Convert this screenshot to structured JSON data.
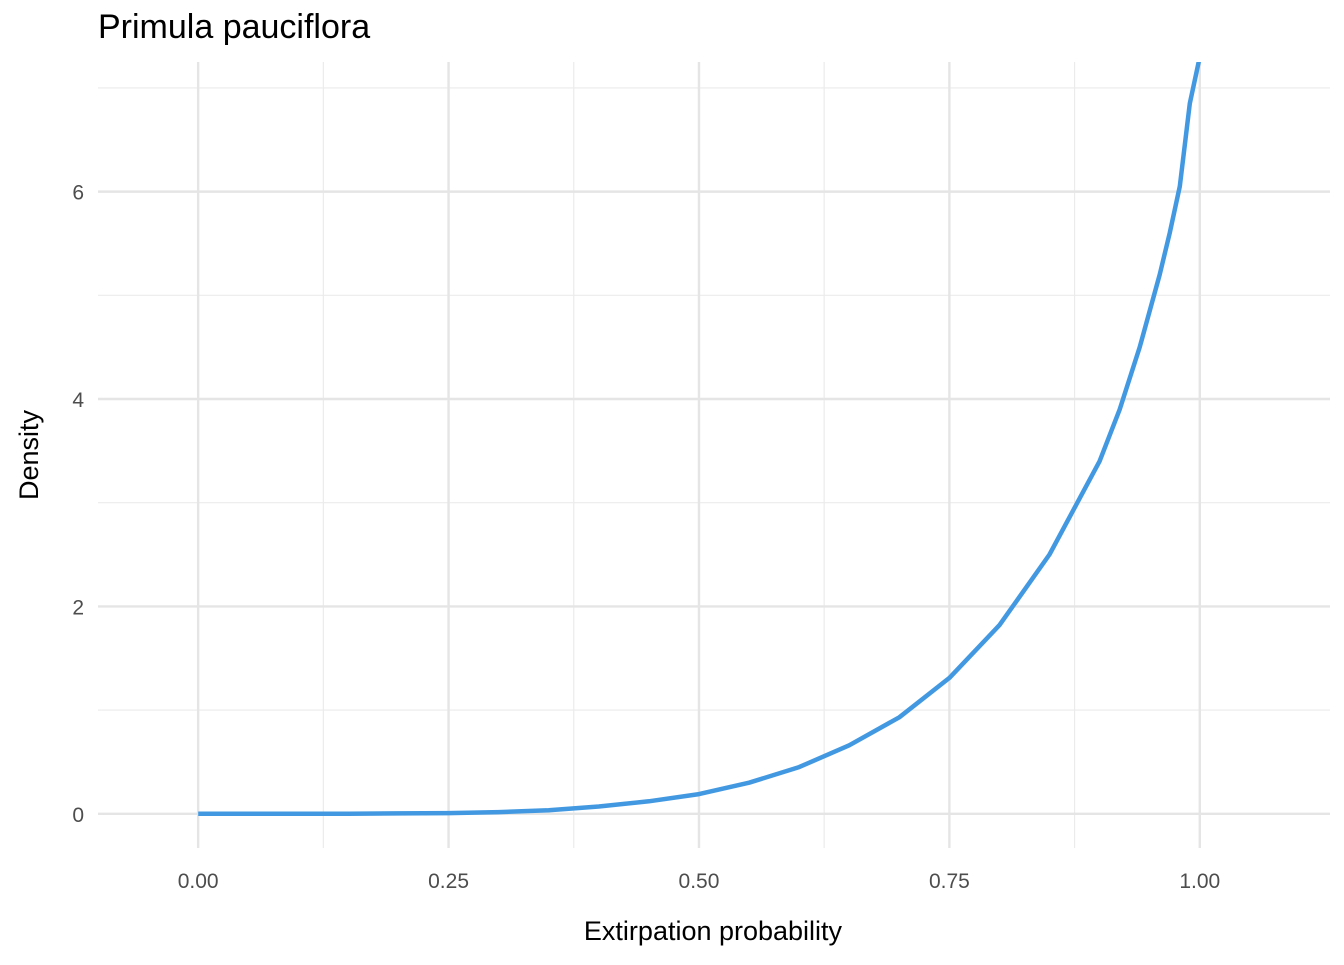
{
  "chart_data": {
    "type": "line",
    "title": "Primula pauciflora",
    "xlabel": "Extirpation probability",
    "ylabel": "Density",
    "xlim": [
      -0.1,
      1.13
    ],
    "ylim": [
      -0.33,
      7.25
    ],
    "x_ticks": [
      0.0,
      0.25,
      0.5,
      0.75,
      1.0
    ],
    "x_tick_labels": [
      "0.00",
      "0.25",
      "0.50",
      "0.75",
      "1.00"
    ],
    "y_ticks": [
      0,
      2,
      4,
      6
    ],
    "y_tick_labels": [
      "0",
      "2",
      "4",
      "6"
    ],
    "x_minor": [
      0.125,
      0.375,
      0.625,
      0.875
    ],
    "y_minor": [
      1,
      3,
      5,
      7
    ],
    "grid": true,
    "legend": "none",
    "series": [
      {
        "color": "#4299E1",
        "x": [
          0.0,
          0.05,
          0.1,
          0.15,
          0.2,
          0.25,
          0.3,
          0.35,
          0.4,
          0.45,
          0.5,
          0.55,
          0.6,
          0.65,
          0.7,
          0.75,
          0.8,
          0.85,
          0.9,
          0.92,
          0.94,
          0.96,
          0.97,
          0.98,
          0.99,
          1.0
        ],
        "y": [
          0.0,
          0.0,
          0.0,
          0.0,
          0.004,
          0.007,
          0.016,
          0.035,
          0.07,
          0.12,
          0.19,
          0.3,
          0.45,
          0.66,
          0.93,
          1.31,
          1.82,
          2.5,
          3.4,
          3.9,
          4.5,
          5.2,
          5.6,
          6.05,
          6.85,
          7.3
        ]
      }
    ]
  }
}
